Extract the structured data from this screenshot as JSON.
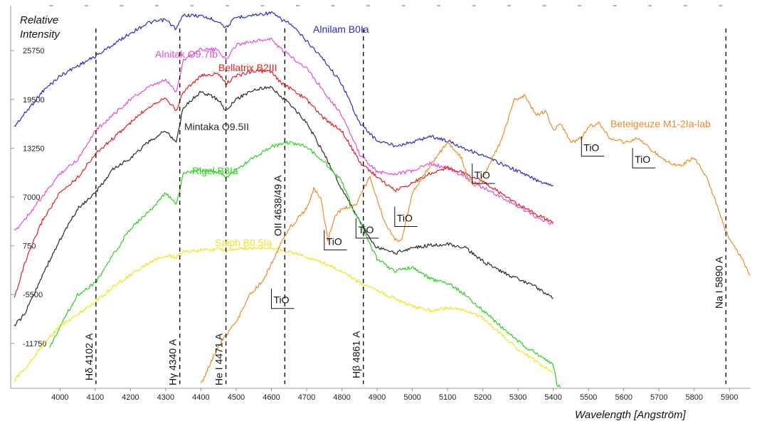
{
  "chart_data": {
    "type": "line",
    "ylabel_line1": "Relative",
    "ylabel_line2": "Intensity",
    "xlabel": "Wavelength [Angström]",
    "xlim": [
      3860,
      5960
    ],
    "ylim": [
      -17500,
      31500
    ],
    "x_ticks": [
      4000,
      4100,
      4200,
      4300,
      4400,
      4500,
      4600,
      4700,
      4800,
      4900,
      5000,
      5100,
      5200,
      5300,
      5400,
      5500,
      5600,
      5700,
      5800,
      5900
    ],
    "y_ticks": [
      25750,
      19500,
      13250,
      7000,
      750,
      -5500,
      -11750
    ],
    "grid": false,
    "series": [
      {
        "name": "Alnilam B0Ia",
        "color": "#2a2acf",
        "x": [
          3870,
          3950,
          4000,
          4050,
          4100,
          4150,
          4200,
          4250,
          4300,
          4330,
          4350,
          4400,
          4450,
          4471,
          4500,
          4550,
          4600,
          4630,
          4650,
          4700,
          4750,
          4800,
          4850,
          4900,
          4950,
          5000,
          5050,
          5100,
          5150,
          5200,
          5250,
          5300,
          5350,
          5400
        ],
        "y": [
          16000,
          20500,
          22500,
          23800,
          25000,
          26500,
          28000,
          29300,
          29700,
          28500,
          30300,
          30200,
          29500,
          28700,
          30000,
          30300,
          30600,
          29700,
          29300,
          27000,
          24500,
          21500,
          16500,
          14200,
          13600,
          14000,
          14800,
          14200,
          13200,
          12300,
          11300,
          10300,
          9200,
          8500
        ]
      },
      {
        "name": "Alnitak O9.7Ib",
        "color": "#e94bd8",
        "x": [
          3870,
          3950,
          4000,
          4050,
          4100,
          4150,
          4200,
          4250,
          4300,
          4330,
          4350,
          4400,
          4450,
          4471,
          4500,
          4550,
          4600,
          4630,
          4650,
          4700,
          4750,
          4800,
          4850,
          4900,
          4950,
          5000,
          5050,
          5100,
          5150,
          5200,
          5250,
          5300,
          5350,
          5400
        ],
        "y": [
          2500,
          7000,
          10000,
          11800,
          15500,
          17500,
          19500,
          21000,
          22000,
          20500,
          24500,
          26000,
          25800,
          24500,
          26500,
          27000,
          27200,
          25800,
          25200,
          23500,
          20500,
          17500,
          12500,
          10200,
          10000,
          10300,
          11300,
          10700,
          9600,
          8200,
          7000,
          5800,
          4500,
          3500
        ]
      },
      {
        "name": "Bellatrix B2III",
        "color": "#e02020",
        "x": [
          3870,
          3900,
          3950,
          4000,
          4050,
          4100,
          4150,
          4200,
          4250,
          4300,
          4330,
          4350,
          4400,
          4450,
          4471,
          4500,
          4550,
          4600,
          4630,
          4650,
          4700,
          4750,
          4800,
          4850,
          4900,
          4950,
          5000,
          5050,
          5100,
          5150,
          5200,
          5250,
          5300,
          5350,
          5400
        ],
        "y": [
          -6000,
          -1500,
          4000,
          7500,
          9500,
          12500,
          14500,
          16500,
          18500,
          19800,
          18000,
          20500,
          22500,
          22800,
          21500,
          22500,
          23200,
          23000,
          21500,
          21000,
          19500,
          17000,
          15500,
          11500,
          9600,
          7800,
          8800,
          10000,
          10800,
          10000,
          9000,
          7500,
          6000,
          4800,
          3800
        ]
      },
      {
        "name": "Mintaka O9.5II",
        "color": "#2a2a2a",
        "x": [
          3870,
          3900,
          3950,
          4000,
          4050,
          4100,
          4150,
          4200,
          4250,
          4300,
          4330,
          4350,
          4400,
          4450,
          4471,
          4500,
          4550,
          4600,
          4630,
          4650,
          4700,
          4750,
          4800,
          4850,
          4880,
          4900,
          4950,
          5000,
          5050,
          5100,
          5150,
          5200,
          5250,
          5300,
          5350,
          5400
        ],
        "y": [
          -9500,
          -8000,
          -3000,
          1500,
          5500,
          7500,
          10500,
          12000,
          14000,
          15500,
          14000,
          18500,
          20500,
          19500,
          18000,
          19500,
          20800,
          21000,
          19800,
          19000,
          16500,
          12500,
          8000,
          4000,
          1500,
          500,
          -200,
          500,
          800,
          1000,
          500,
          -1200,
          -2500,
          -3500,
          -4500,
          -6000
        ]
      },
      {
        "name": "Rigel B8Ia",
        "color": "#29d41a",
        "x": [
          3970,
          4000,
          4050,
          4100,
          4150,
          4200,
          4250,
          4300,
          4330,
          4350,
          4400,
          4450,
          4471,
          4500,
          4550,
          4600,
          4650,
          4700,
          4750,
          4800,
          4830,
          4850,
          4860,
          4900,
          4950,
          5000,
          5050,
          5100,
          5150,
          5200,
          5250,
          5300,
          5350,
          5400,
          5405,
          5410,
          5420
        ],
        "y": [
          -12500,
          -9500,
          -5500,
          -4000,
          -500,
          3000,
          5000,
          7500,
          6000,
          10000,
          10500,
          10200,
          9500,
          10500,
          12000,
          13500,
          14000,
          13500,
          11500,
          9000,
          5500,
          4000,
          3000,
          -1000,
          -2500,
          -2000,
          -3500,
          -4000,
          -5500,
          -7500,
          -9500,
          -11500,
          -13000,
          -14500,
          -15500,
          -17000,
          -17400
        ]
      },
      {
        "name": "Saiph B0.5Ia",
        "color": "#f2e31a",
        "x": [
          3870,
          3900,
          3950,
          4000,
          4050,
          4100,
          4150,
          4200,
          4250,
          4300,
          4330,
          4350,
          4400,
          4450,
          4471,
          4500,
          4550,
          4600,
          4650,
          4700,
          4750,
          4800,
          4850,
          4900,
          4950,
          5000,
          5050,
          5100,
          5150,
          5200,
          5250,
          5300,
          5350,
          5400
        ],
        "y": [
          -16500,
          -15000,
          -12000,
          -9500,
          -8000,
          -6500,
          -4500,
          -3000,
          -1500,
          -500,
          -700,
          0,
          200,
          300,
          100,
          300,
          500,
          500,
          0,
          -700,
          -1500,
          -2500,
          -4000,
          -5000,
          -6000,
          -7000,
          -7500,
          -7200,
          -7500,
          -8500,
          -10500,
          -12500,
          -14000,
          -15500
        ]
      },
      {
        "name": "Beteigeuze M1-2Ia-lab",
        "color": "#f08a24",
        "x": [
          4400,
          4450,
          4500,
          4540,
          4560,
          4580,
          4600,
          4650,
          4700,
          4720,
          4740,
          4760,
          4780,
          4800,
          4840,
          4860,
          4880,
          4920,
          4950,
          4970,
          5000,
          5050,
          5100,
          5140,
          5160,
          5180,
          5200,
          5250,
          5290,
          5320,
          5350,
          5380,
          5400,
          5420,
          5450,
          5480,
          5500,
          5530,
          5560,
          5600,
          5640,
          5680,
          5720,
          5760,
          5800,
          5830,
          5860,
          5890,
          5930,
          5960
        ],
        "y": [
          -17000,
          -12000,
          -9000,
          -5500,
          -4500,
          -3500,
          -1500,
          3000,
          5500,
          8000,
          7000,
          1500,
          4500,
          5500,
          6000,
          8000,
          9500,
          4000,
          1500,
          1500,
          7500,
          11000,
          14000,
          12000,
          9000,
          8500,
          9500,
          14000,
          19500,
          20000,
          17500,
          18000,
          15500,
          16500,
          14000,
          14500,
          16000,
          16500,
          14500,
          14000,
          14500,
          13000,
          11500,
          11000,
          12000,
          10000,
          6500,
          2500,
          -500,
          -3000
        ]
      }
    ],
    "vertical_lines": [
      {
        "x": 4102,
        "label": "Hδ 4102 A"
      },
      {
        "x": 4340,
        "label": "Hγ 4340 A"
      },
      {
        "x": 4471,
        "label": "He I 4471 A"
      },
      {
        "x": 4638,
        "label": "OII 4638/49 A"
      },
      {
        "x": 4861,
        "label": "Hβ 4861 A"
      },
      {
        "x": 5890,
        "label": "Na I 5890 A"
      }
    ],
    "tio_markers": [
      {
        "x": 4600,
        "y": -6000,
        "label": "TiO"
      },
      {
        "x": 4750,
        "y": 1500,
        "label": "TiO"
      },
      {
        "x": 4840,
        "y": 3000,
        "label": "TiO"
      },
      {
        "x": 4950,
        "y": 4500,
        "label": "TiO"
      },
      {
        "x": 5170,
        "y": 10000,
        "label": "TiO"
      },
      {
        "x": 5480,
        "y": 13500,
        "label": "TiO"
      },
      {
        "x": 5625,
        "y": 12000,
        "label": "TiO"
      }
    ]
  }
}
